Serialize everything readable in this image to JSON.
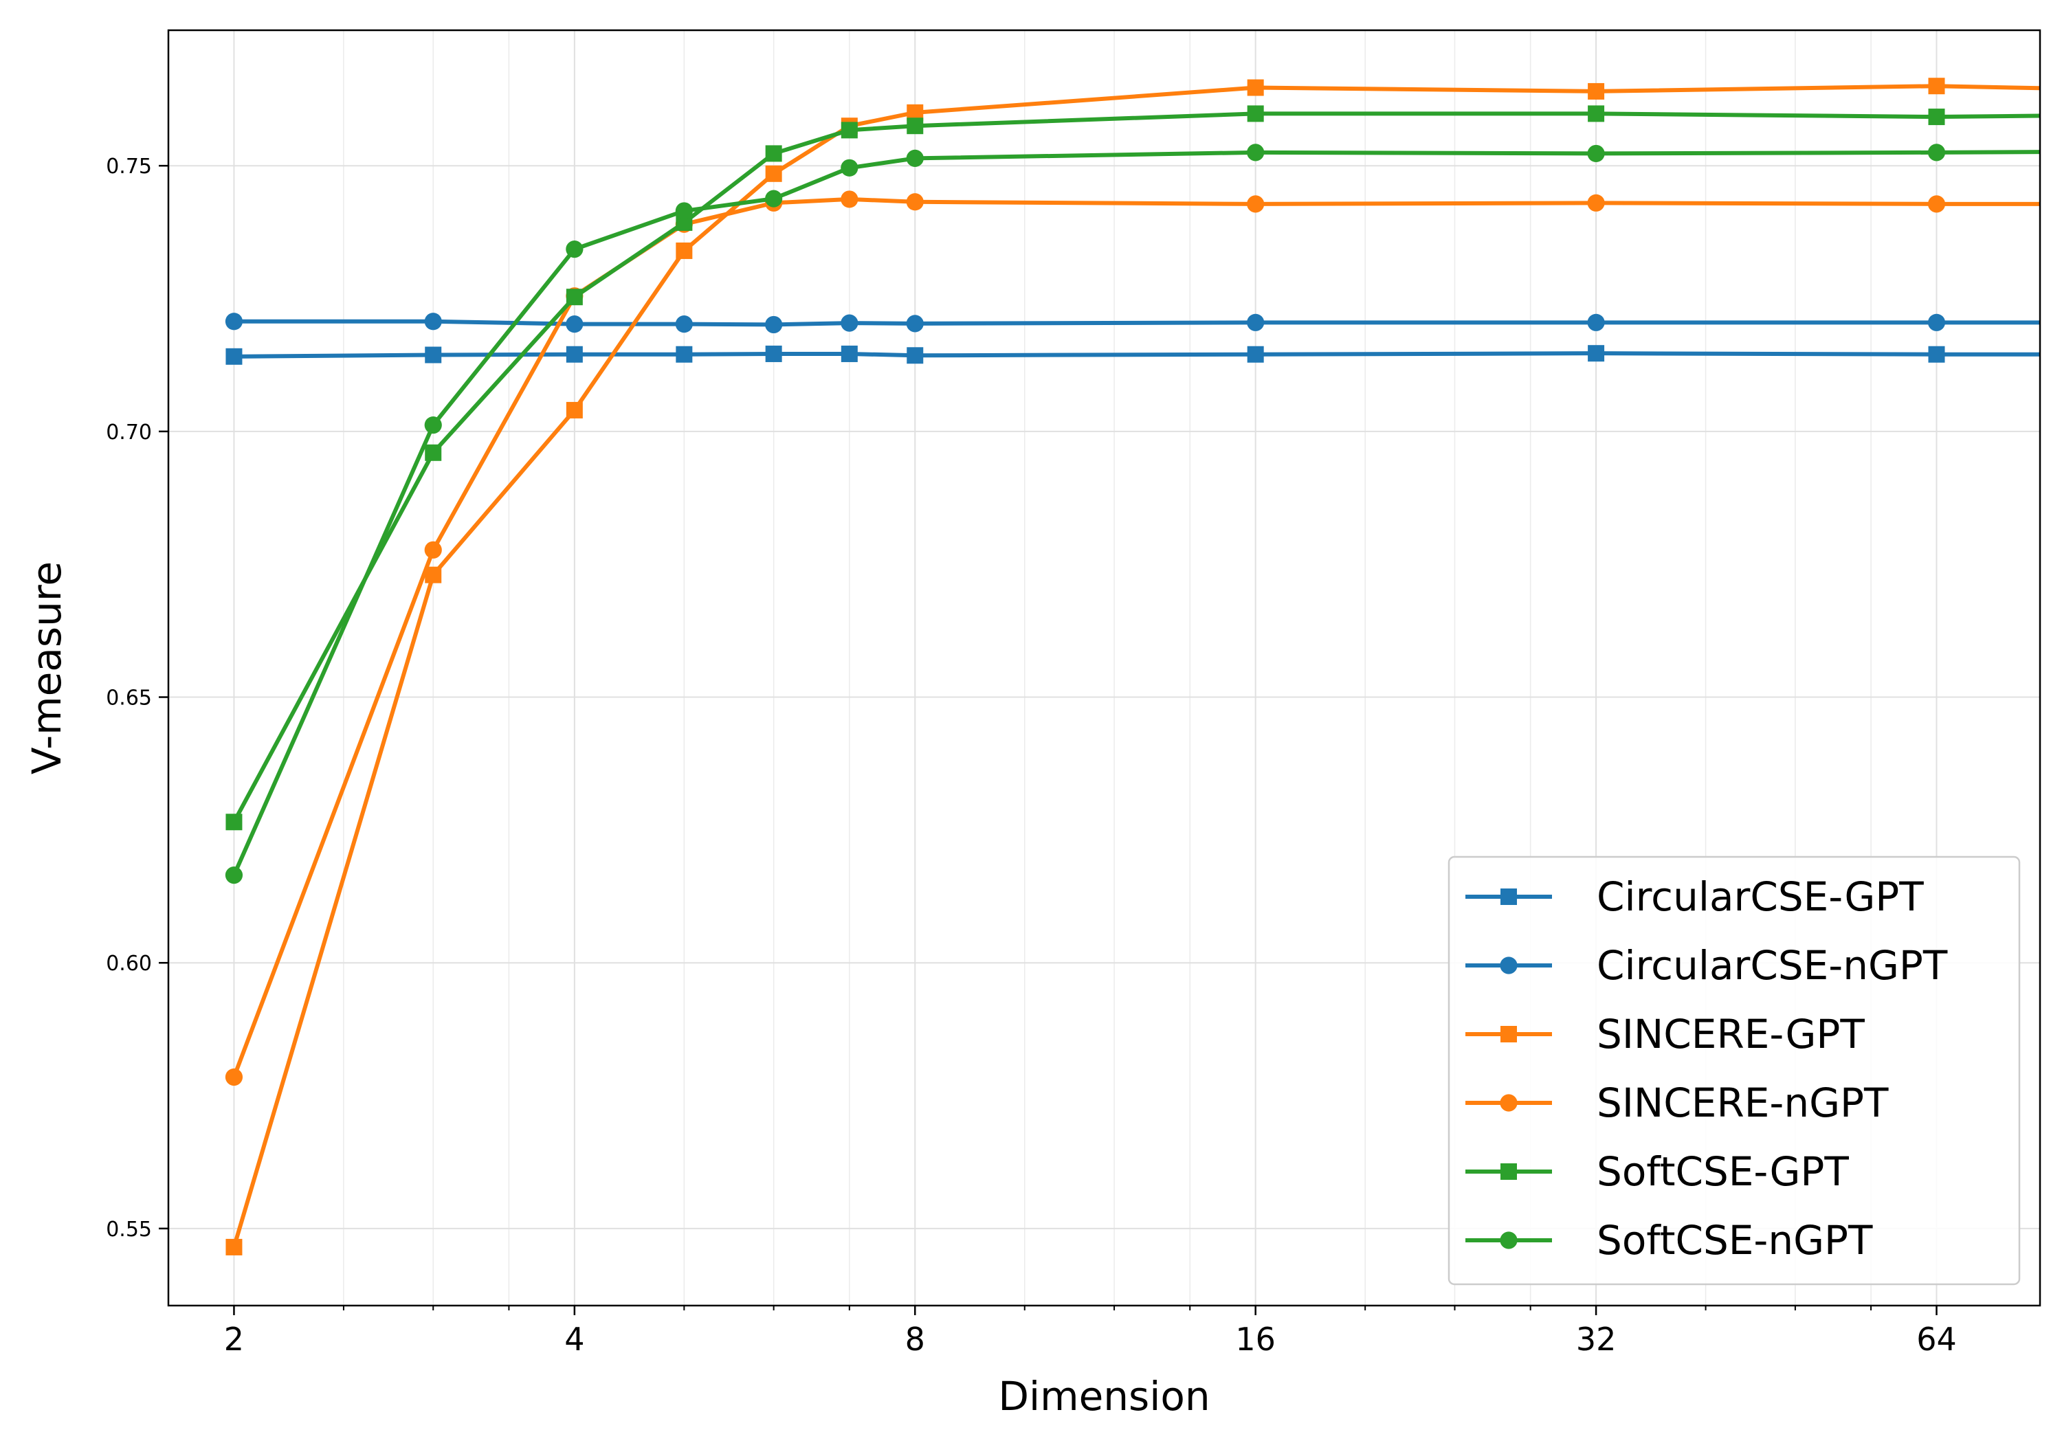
{
  "chart_data": {
    "type": "line",
    "title": "",
    "xlabel": "Dimension",
    "ylabel": "V-measure",
    "x_scale": "log2",
    "xlim": [
      1.75,
      79
    ],
    "ylim": [
      0.5355,
      0.7755
    ],
    "x_ticks": [
      2,
      4,
      8,
      16,
      32,
      64
    ],
    "x_tick_labels": [
      "2",
      "4",
      "8",
      "16",
      "32",
      "64"
    ],
    "y_ticks": [
      0.55,
      0.6,
      0.65,
      0.7,
      0.75
    ],
    "y_tick_labels": [
      "0.55",
      "0.60",
      "0.65",
      "0.70",
      "0.75"
    ],
    "grid": true,
    "legend_position": "lower-right",
    "x": [
      2,
      3,
      4,
      5,
      6,
      7,
      8,
      16,
      32,
      64,
      79
    ],
    "series": [
      {
        "name": "CircularCSE-GPT",
        "color": "#1f77b4",
        "marker": "square",
        "values": [
          0.7141,
          0.7144,
          0.7145,
          0.7145,
          0.7146,
          0.7146,
          0.7143,
          0.7145,
          0.7147,
          0.7145,
          0.7145
        ]
      },
      {
        "name": "CircularCSE-nGPT",
        "color": "#1f77b4",
        "marker": "circle",
        "values": [
          0.7207,
          0.7207,
          0.7202,
          0.7202,
          0.7201,
          0.7204,
          0.7203,
          0.7205,
          0.7205,
          0.7205,
          0.7205
        ]
      },
      {
        "name": "SINCERE-GPT",
        "color": "#ff7f0e",
        "marker": "square",
        "values": [
          0.5465,
          0.673,
          0.704,
          0.734,
          0.7485,
          0.7575,
          0.76,
          0.7647,
          0.764,
          0.765,
          0.7646
        ]
      },
      {
        "name": "SINCERE-nGPT",
        "color": "#ff7f0e",
        "marker": "circle",
        "values": [
          0.5785,
          0.6777,
          0.7255,
          0.739,
          0.743,
          0.7437,
          0.7432,
          0.7428,
          0.743,
          0.7428,
          0.7428
        ]
      },
      {
        "name": "SoftCSE-GPT",
        "color": "#2ca02c",
        "marker": "square",
        "values": [
          0.6265,
          0.696,
          0.7253,
          0.7393,
          0.7523,
          0.7567,
          0.7575,
          0.7598,
          0.7598,
          0.7592,
          0.7594
        ]
      },
      {
        "name": "SoftCSE-nGPT",
        "color": "#2ca02c",
        "marker": "circle",
        "values": [
          0.6165,
          0.7012,
          0.7343,
          0.7415,
          0.7438,
          0.7496,
          0.7514,
          0.7525,
          0.7523,
          0.7525,
          0.7526
        ]
      }
    ]
  }
}
